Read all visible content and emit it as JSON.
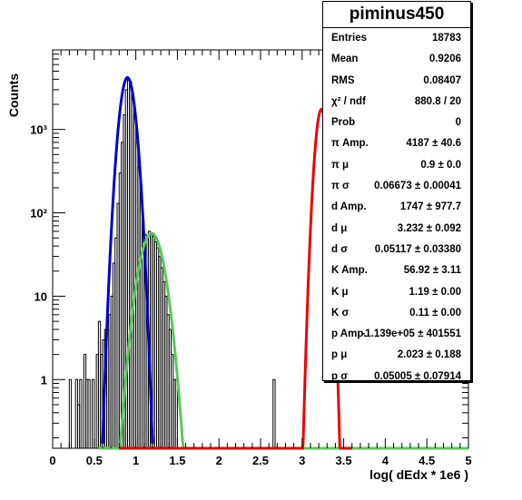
{
  "stats": {
    "title": "piminus450",
    "rows": [
      {
        "key": "Entries",
        "value": "18783"
      },
      {
        "key": "Mean",
        "value": "0.9206"
      },
      {
        "key": "RMS",
        "value": "0.08407"
      },
      {
        "key": "χ² / ndf",
        "value": "880.8 / 20"
      },
      {
        "key": "Prob",
        "value": "0"
      },
      {
        "key": "π Amp.",
        "value": "4187 ± 40.6"
      },
      {
        "key": "π μ",
        "value": "0.9 ± 0.0"
      },
      {
        "key": "π σ",
        "value": "0.06673 ± 0.00041"
      },
      {
        "key": "d Amp.",
        "value": "1747 ± 977.7"
      },
      {
        "key": "d μ",
        "value": "3.232 ± 0.092"
      },
      {
        "key": "d σ",
        "value": "0.05117 ± 0.03380"
      },
      {
        "key": "K Amp.",
        "value": "56.92 ± 3.11"
      },
      {
        "key": "K μ",
        "value": "1.19 ± 0.00"
      },
      {
        "key": "K σ",
        "value": "0.11 ± 0.00"
      },
      {
        "key": "p Amp.",
        "value": "-1.139e+05 ± 401551"
      },
      {
        "key": "p μ",
        "value": "2.023 ± 0.188"
      },
      {
        "key": "p σ",
        "value": "0.05005 ± 0.07914"
      }
    ]
  },
  "chart_data": {
    "type": "histogram",
    "xlabel": "log( dEdx * 1e6 )",
    "ylabel": "Counts",
    "xlim": [
      0,
      5
    ],
    "ylim": [
      0.15,
      9000
    ],
    "yscale": "log",
    "x_ticks": [
      "0",
      "0.5",
      "1",
      "1.5",
      "2",
      "2.5",
      "3",
      "3.5",
      "4",
      "4.5",
      "5"
    ],
    "y_ticks": [
      "1",
      "10",
      "10²",
      "10³"
    ],
    "bin_width": 0.025,
    "histogram": [
      {
        "x": 0.2,
        "y": 1
      },
      {
        "x": 0.275,
        "y": 1
      },
      {
        "x": 0.3,
        "y": 0.5
      },
      {
        "x": 0.325,
        "y": 1
      },
      {
        "x": 0.375,
        "y": 2
      },
      {
        "x": 0.4,
        "y": 1
      },
      {
        "x": 0.425,
        "y": 1
      },
      {
        "x": 0.475,
        "y": 1
      },
      {
        "x": 0.525,
        "y": 2
      },
      {
        "x": 0.55,
        "y": 5
      },
      {
        "x": 0.575,
        "y": 2
      },
      {
        "x": 0.6,
        "y": 3
      },
      {
        "x": 0.625,
        "y": 4
      },
      {
        "x": 0.65,
        "y": 4
      },
      {
        "x": 0.675,
        "y": 6
      },
      {
        "x": 0.7,
        "y": 10
      },
      {
        "x": 0.725,
        "y": 25
      },
      {
        "x": 0.75,
        "y": 50
      },
      {
        "x": 0.775,
        "y": 130
      },
      {
        "x": 0.8,
        "y": 300
      },
      {
        "x": 0.825,
        "y": 700
      },
      {
        "x": 0.85,
        "y": 1500
      },
      {
        "x": 0.875,
        "y": 3000
      },
      {
        "x": 0.9,
        "y": 4000
      },
      {
        "x": 0.925,
        "y": 3700
      },
      {
        "x": 0.95,
        "y": 2500
      },
      {
        "x": 0.975,
        "y": 1500
      },
      {
        "x": 1.0,
        "y": 700
      },
      {
        "x": 1.025,
        "y": 350
      },
      {
        "x": 1.05,
        "y": 150
      },
      {
        "x": 1.075,
        "y": 80
      },
      {
        "x": 1.1,
        "y": 55
      },
      {
        "x": 1.125,
        "y": 50
      },
      {
        "x": 1.15,
        "y": 60
      },
      {
        "x": 1.175,
        "y": 55
      },
      {
        "x": 1.2,
        "y": 52
      },
      {
        "x": 1.225,
        "y": 45
      },
      {
        "x": 1.25,
        "y": 38
      },
      {
        "x": 1.275,
        "y": 30
      },
      {
        "x": 1.3,
        "y": 22
      },
      {
        "x": 1.325,
        "y": 15
      },
      {
        "x": 1.35,
        "y": 10
      },
      {
        "x": 1.375,
        "y": 6
      },
      {
        "x": 1.4,
        "y": 4
      },
      {
        "x": 1.425,
        "y": 2
      },
      {
        "x": 1.45,
        "y": 1
      },
      {
        "x": 1.475,
        "y": 1
      },
      {
        "x": 2.65,
        "y": 1
      }
    ],
    "fits": [
      {
        "name": "π",
        "color": "#0000cc",
        "amp": 4187,
        "mu": 0.9,
        "sigma": 0.06673,
        "range": [
          0.6,
          1.2
        ]
      },
      {
        "name": "K",
        "color": "#55cc55",
        "amp": 56.92,
        "mu": 1.19,
        "sigma": 0.11,
        "range": [
          0.55,
          5.0
        ]
      },
      {
        "name": "d",
        "color": "#ee0000",
        "amp": 1747,
        "mu": 3.232,
        "sigma": 0.05117,
        "range": [
          0.8,
          3.6
        ]
      }
    ],
    "grid": false,
    "legend": "top-right"
  }
}
